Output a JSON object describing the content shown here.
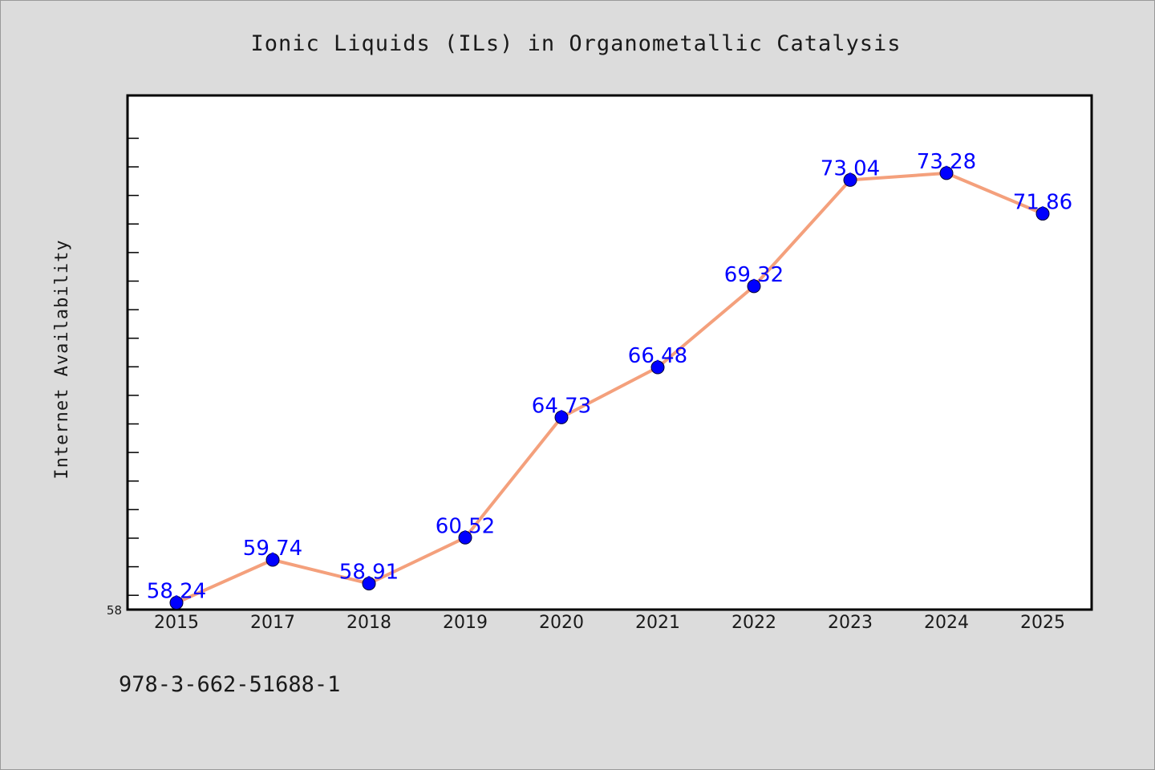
{
  "chart_data": {
    "type": "line",
    "title": "Ionic Liquids (ILs) in Organometallic Catalysis",
    "xlabel": "",
    "ylabel": "Internet Availability",
    "categories": [
      "2015",
      "2017",
      "2018",
      "2019",
      "2020",
      "2021",
      "2022",
      "2023",
      "2024",
      "2025"
    ],
    "series": [
      {
        "values": [
          58.24,
          59.74,
          58.91,
          60.52,
          64.73,
          66.48,
          69.32,
          73.04,
          73.28,
          71.86
        ],
        "labels": [
          "58.24",
          "59.74",
          "58.91",
          "60.52",
          "64.73",
          "66.48",
          "69.32",
          "73.04",
          "73.28",
          "71.86"
        ]
      }
    ],
    "ylim": [
      58,
      76
    ],
    "y_tick_labels": [
      "58"
    ],
    "grid": false,
    "legend": "none",
    "line_color": "#f4a07c",
    "marker_color": "#0000ff",
    "label_color": "#0000ff"
  },
  "footer": {
    "isbn": "978-3-662-51688-1"
  }
}
